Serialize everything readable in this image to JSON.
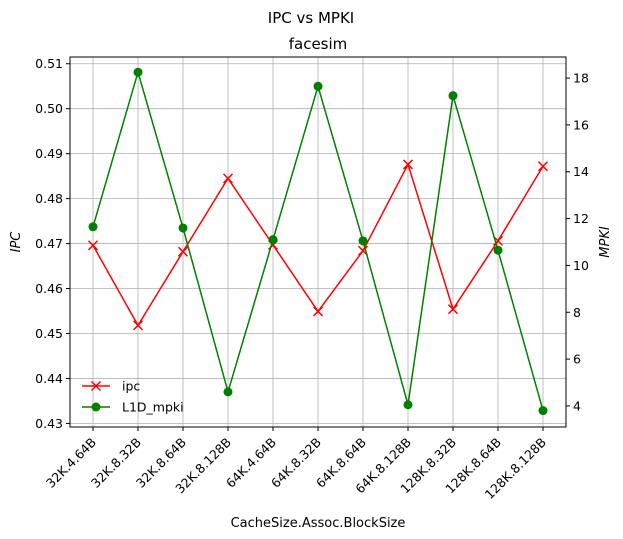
{
  "chart_data": {
    "type": "line",
    "suptitle": "IPC vs MPKI",
    "title": "facesim",
    "xlabel": "CacheSize.Assoc.BlockSize",
    "ylabel_left": "IPC",
    "ylabel_right": "MPKI",
    "categories": [
      "32K.4.64B",
      "32K.8.32B",
      "32K.8.64B",
      "32K.8.128B",
      "64K.4.64B",
      "64K.8.32B",
      "64K.8.64B",
      "64K.8.128B",
      "128K.8.32B",
      "128K.8.64B",
      "128K.8.128B"
    ],
    "ylim_left": [
      0.4292,
      0.5115
    ],
    "ylim_right": [
      3.1,
      18.9
    ],
    "yticks_left": [
      0.43,
      0.44,
      0.45,
      0.46,
      0.47,
      0.48,
      0.49,
      0.5,
      0.51
    ],
    "yticks_left_labels": [
      "0.43",
      "0.44",
      "0.45",
      "0.46",
      "0.47",
      "0.48",
      "0.49",
      "0.50",
      "0.51"
    ],
    "yticks_right": [
      4,
      6,
      8,
      10,
      12,
      14,
      16,
      18
    ],
    "yticks_right_labels": [
      "4",
      "6",
      "8",
      "10",
      "12",
      "14",
      "16",
      "18"
    ],
    "grid": true,
    "legend_position": "lower-left",
    "series": [
      {
        "name": "ipc",
        "axis": "left",
        "color": "#ff0000",
        "marker": "x",
        "values": [
          0.4696,
          0.4518,
          0.4682,
          0.4845,
          0.4697,
          0.4549,
          0.4684,
          0.4876,
          0.4554,
          0.4706,
          0.4872
        ]
      },
      {
        "name": "L1D_mpki",
        "axis": "right",
        "color": "#008000",
        "marker": "o",
        "values": [
          11.65,
          18.25,
          11.6,
          4.6,
          11.1,
          17.65,
          11.05,
          4.05,
          17.25,
          10.65,
          3.8
        ]
      }
    ]
  }
}
